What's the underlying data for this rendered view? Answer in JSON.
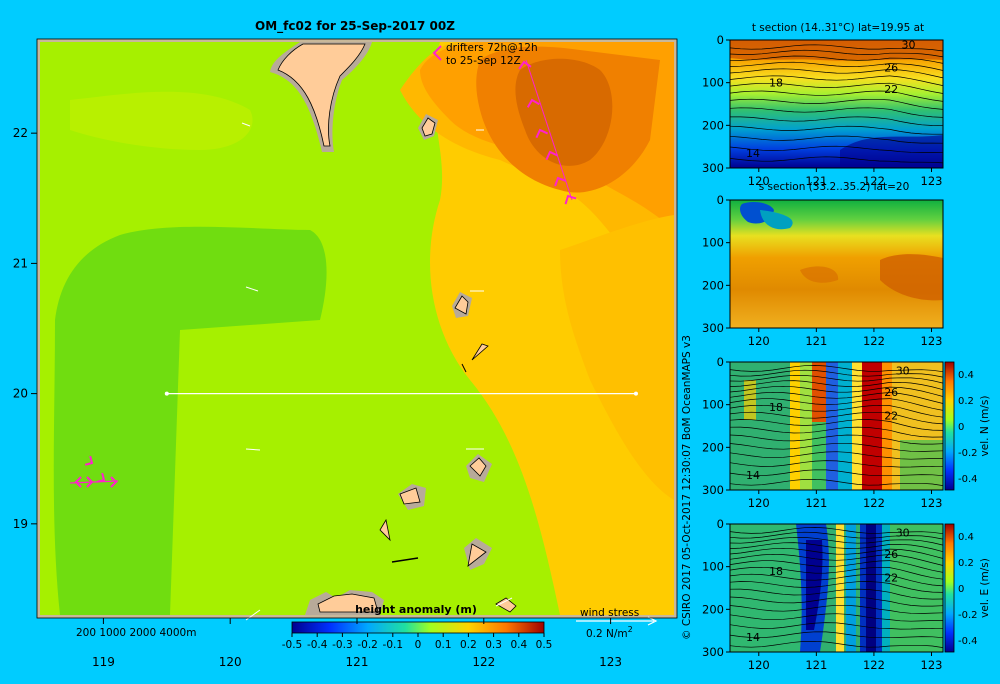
{
  "colors": {
    "background": "#00ccff",
    "frame": "#c8b89a",
    "land": "#ffcc99",
    "land_shadow": "#b8aa99",
    "drifter": "#ff22cc",
    "wind_arrow": "#ffffff",
    "section_line": "#ffffff"
  },
  "credit": "© CSIRO 2017   05-Oct-2017 12:30:07 BoM OceanMAPS v3",
  "main_map": {
    "title": "OM_fc02 for 25-Sep-2017 00Z",
    "drifter_label_1": "drifters 72h@12h",
    "drifter_label_2": "to 25-Sep 12Z",
    "depth_legend": "200  1000  2000  4000m",
    "colorbar_title": "height anomaly  (m)",
    "colorbar_ticks": [
      "-0.5",
      "-0.4",
      "-0.3",
      "-0.2",
      "-0.1",
      "0",
      "0.1",
      "0.2",
      "0.3",
      "0.4",
      "0.5"
    ],
    "wind_stress_label": "wind stress",
    "wind_stress_unit": "0.2 N/m",
    "wind_stress_unit_sup": "2",
    "section_line": {
      "lon": [
        119.5,
        123.2
      ],
      "lat": 20
    }
  },
  "chart_data": [
    {
      "type": "heatmap",
      "title": "OM_fc02 for 25-Sep-2017 00Z",
      "quantity": "height anomaly (m)",
      "xlim": [
        118.5,
        123.5
      ],
      "ylim": [
        18.3,
        22.7
      ],
      "x_ticks": [
        "119",
        "120",
        "121",
        "122",
        "123"
      ],
      "y_ticks": [
        "19",
        "20",
        "21",
        "22"
      ],
      "colorbar_range": [
        -0.5,
        0.5
      ],
      "colorbar_ticks": [
        -0.5,
        -0.4,
        -0.3,
        -0.2,
        -0.1,
        0,
        0.1,
        0.2,
        0.3,
        0.4,
        0.5
      ],
      "field_regions": [
        {
          "level": 0.1,
          "region": "green tongue west, lon 118.7-120.7, lat 18.3-21.1"
        },
        {
          "level": 0.2,
          "region": "most of domain"
        },
        {
          "level": 0.3,
          "region": "east of lon 121.8"
        },
        {
          "level": 0.4,
          "region": "northeast, lon 122-123.3, lat 21.6-22.7"
        }
      ]
    },
    {
      "type": "heatmap",
      "title": "t section (14..31°C) lat=19.95 at",
      "xlim": [
        119.5,
        123.2
      ],
      "ylim": [
        300,
        0
      ],
      "x_ticks": [
        "120",
        "121",
        "122",
        "123"
      ],
      "y_ticks": [
        "0",
        "100",
        "200",
        "300"
      ],
      "contour_labels": [
        {
          "text": "30",
          "lon": 122.6,
          "depth": 10
        },
        {
          "text": "26",
          "lon": 122.3,
          "depth": 65
        },
        {
          "text": "22",
          "lon": 122.3,
          "depth": 115
        },
        {
          "text": "18",
          "lon": 120.3,
          "depth": 100
        },
        {
          "text": "14",
          "lon": 119.9,
          "depth": 265
        }
      ]
    },
    {
      "type": "heatmap",
      "title": "s section (33.2..35.2) lat=20",
      "xlim": [
        119.5,
        123.2
      ],
      "ylim": [
        300,
        0
      ],
      "x_ticks": [
        "120",
        "121",
        "122",
        "123"
      ],
      "y_ticks": [
        "0",
        "100",
        "200",
        "300"
      ]
    },
    {
      "type": "heatmap",
      "quantity": "vel. N (m/s)",
      "xlim": [
        119.5,
        123.2
      ],
      "ylim": [
        300,
        0
      ],
      "x_ticks": [
        "120",
        "121",
        "122",
        "123"
      ],
      "y_ticks": [
        "0",
        "100",
        "200",
        "300"
      ],
      "colorbar_ticks": [
        "0.4",
        "0.2",
        "0",
        "-0.2",
        "-0.4"
      ],
      "contour_labels": [
        {
          "text": "30",
          "lon": 122.5,
          "depth": 20
        },
        {
          "text": "26",
          "lon": 122.3,
          "depth": 70
        },
        {
          "text": "22",
          "lon": 122.3,
          "depth": 125
        },
        {
          "text": "18",
          "lon": 120.3,
          "depth": 105
        },
        {
          "text": "14",
          "lon": 119.9,
          "depth": 265
        }
      ]
    },
    {
      "type": "heatmap",
      "quantity": "vel. E (m/s)",
      "xlim": [
        119.5,
        123.2
      ],
      "ylim": [
        300,
        0
      ],
      "x_ticks": [
        "120",
        "121",
        "122",
        "123"
      ],
      "y_ticks": [
        "0",
        "100",
        "200",
        "300"
      ],
      "colorbar_ticks": [
        "0.4",
        "0.2",
        "0",
        "-0.2",
        "-0.4"
      ],
      "contour_labels": [
        {
          "text": "30",
          "lon": 122.5,
          "depth": 20
        },
        {
          "text": "26",
          "lon": 122.3,
          "depth": 70
        },
        {
          "text": "22",
          "lon": 122.3,
          "depth": 125
        },
        {
          "text": "18",
          "lon": 120.3,
          "depth": 110
        },
        {
          "text": "14",
          "lon": 119.9,
          "depth": 265
        }
      ]
    }
  ]
}
